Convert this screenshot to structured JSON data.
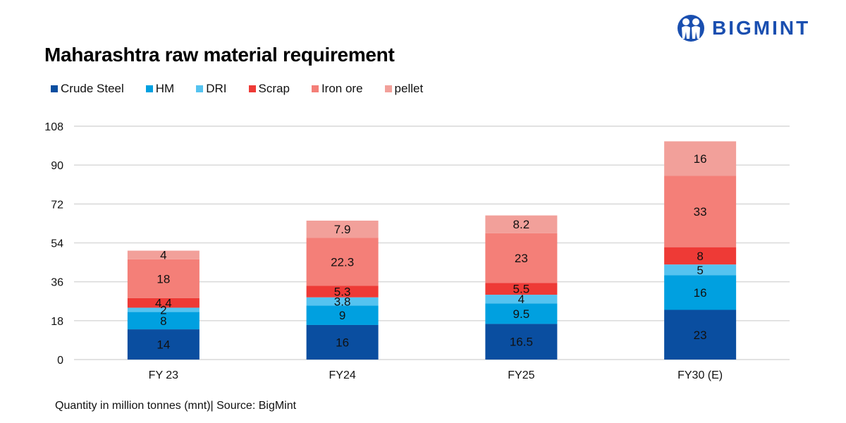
{
  "brand": {
    "name": "BIGMINT",
    "color": "#1a4fb0"
  },
  "footnote": "Quantity in million tonnes (mnt)| Source: BigMint",
  "chart_data": {
    "type": "bar",
    "stacked": true,
    "title": "Maharashtra raw material requirement",
    "xlabel": "",
    "ylabel": "",
    "categories": [
      "FY 23",
      "FY24",
      "FY25",
      "FY30 (E)"
    ],
    "ylim": [
      0,
      108
    ],
    "yticks": [
      0,
      18,
      36,
      54,
      72,
      90,
      108
    ],
    "grid": true,
    "legend_position": "top-left",
    "series": [
      {
        "name": "Crude Steel",
        "color": "#0a4ea0",
        "values": [
          14,
          16,
          16.5,
          23
        ]
      },
      {
        "name": "HM",
        "color": "#00a0e0",
        "values": [
          8,
          9,
          9.5,
          16
        ]
      },
      {
        "name": "DRI",
        "color": "#55c3f0",
        "values": [
          2,
          3.8,
          4,
          5
        ]
      },
      {
        "name": "Scrap",
        "color": "#ee3a36",
        "values": [
          4.4,
          5.3,
          5.5,
          8
        ]
      },
      {
        "name": "Iron ore",
        "color": "#f47f78",
        "values": [
          18,
          22.3,
          23,
          33
        ]
      },
      {
        "name": "pellet",
        "color": "#f2a09a",
        "values": [
          4,
          7.9,
          8.2,
          16
        ]
      }
    ]
  }
}
